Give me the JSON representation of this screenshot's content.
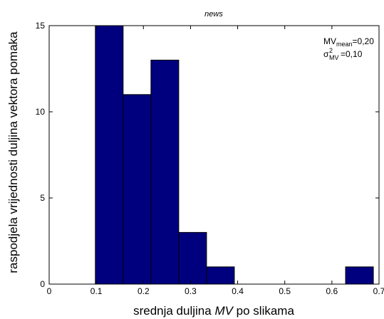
{
  "chart_data": {
    "type": "bar",
    "title": "news",
    "xlabel": {
      "before": "srednja duljina ",
      "italic": "MV",
      "after": " po slikama"
    },
    "ylabel": "raspodjela vrijednosti duljina vektora pomaka",
    "xlim": [
      0,
      0.7
    ],
    "ylim": [
      0,
      15
    ],
    "xticks": [
      0,
      0.1,
      0.2,
      0.3,
      0.4,
      0.5,
      0.6,
      0.7
    ],
    "xtick_labels": [
      "0",
      "0.1",
      "0.2",
      "0.3",
      "0.4",
      "0.5",
      "0.6",
      "0.7"
    ],
    "yticks": [
      0,
      5,
      10,
      15
    ],
    "ytick_labels": [
      "0",
      "5",
      "10",
      "15"
    ],
    "bins": [
      {
        "x0": 0.098,
        "x1": 0.157,
        "value": 15
      },
      {
        "x0": 0.157,
        "x1": 0.216,
        "value": 11
      },
      {
        "x0": 0.216,
        "x1": 0.275,
        "value": 13
      },
      {
        "x0": 0.275,
        "x1": 0.334,
        "value": 3
      },
      {
        "x0": 0.334,
        "x1": 0.393,
        "value": 1
      },
      {
        "x0": 0.393,
        "x1": 0.452,
        "value": 0
      },
      {
        "x0": 0.452,
        "x1": 0.511,
        "value": 0
      },
      {
        "x0": 0.511,
        "x1": 0.57,
        "value": 0
      },
      {
        "x0": 0.57,
        "x1": 0.629,
        "value": 0
      },
      {
        "x0": 0.629,
        "x1": 0.688,
        "value": 1
      }
    ],
    "bar_color": "#00007f",
    "bar_edge_color": "#000000",
    "grid": false,
    "annotations": {
      "mean": {
        "base": "MV",
        "sub": "mean",
        "value": "=0,20"
      },
      "variance": {
        "base": "σ",
        "sup": "2",
        "sub": "MV",
        "value": "=0,10"
      }
    }
  }
}
